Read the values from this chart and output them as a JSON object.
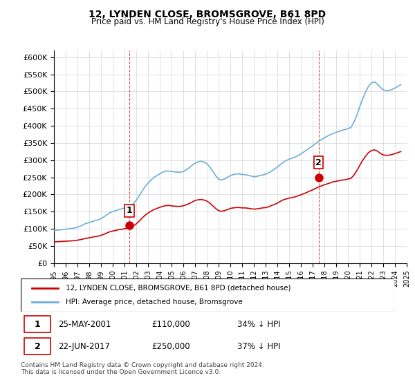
{
  "title": "12, LYNDEN CLOSE, BROMSGROVE, B61 8PD",
  "subtitle": "Price paid vs. HM Land Registry's House Price Index (HPI)",
  "xlabel": "",
  "ylabel": "",
  "ylim": [
    0,
    620000
  ],
  "yticks": [
    0,
    50000,
    100000,
    150000,
    200000,
    250000,
    300000,
    350000,
    400000,
    450000,
    500000,
    550000,
    600000
  ],
  "ytick_labels": [
    "£0",
    "£50K",
    "£100K",
    "£150K",
    "£200K",
    "£250K",
    "£300K",
    "£350K",
    "£400K",
    "£450K",
    "£500K",
    "£550K",
    "£600K"
  ],
  "hpi_color": "#6baed6",
  "price_color": "#cc0000",
  "marker_color": "#cc0000",
  "sale1_year": 2001.4,
  "sale1_price": 110000,
  "sale1_label": "1",
  "sale2_year": 2017.5,
  "sale2_price": 250000,
  "sale2_label": "2",
  "legend_line1": "12, LYNDEN CLOSE, BROMSGROVE, B61 8PD (detached house)",
  "legend_line2": "HPI: Average price, detached house, Bromsgrove",
  "table_row1": [
    "1",
    "25-MAY-2001",
    "£110,000",
    "34% ↓ HPI"
  ],
  "table_row2": [
    "2",
    "22-JUN-2017",
    "£250,000",
    "37% ↓ HPI"
  ],
  "footnote": "Contains HM Land Registry data © Crown copyright and database right 2024.\nThis data is licensed under the Open Government Licence v3.0.",
  "hpi_data": {
    "years": [
      1995.0,
      1995.25,
      1995.5,
      1995.75,
      1996.0,
      1996.25,
      1996.5,
      1996.75,
      1997.0,
      1997.25,
      1997.5,
      1997.75,
      1998.0,
      1998.25,
      1998.5,
      1998.75,
      1999.0,
      1999.25,
      1999.5,
      1999.75,
      2000.0,
      2000.25,
      2000.5,
      2000.75,
      2001.0,
      2001.25,
      2001.5,
      2001.75,
      2002.0,
      2002.25,
      2002.5,
      2002.75,
      2003.0,
      2003.25,
      2003.5,
      2003.75,
      2004.0,
      2004.25,
      2004.5,
      2004.75,
      2005.0,
      2005.25,
      2005.5,
      2005.75,
      2006.0,
      2006.25,
      2006.5,
      2006.75,
      2007.0,
      2007.25,
      2007.5,
      2007.75,
      2008.0,
      2008.25,
      2008.5,
      2008.75,
      2009.0,
      2009.25,
      2009.5,
      2009.75,
      2010.0,
      2010.25,
      2010.5,
      2010.75,
      2011.0,
      2011.25,
      2011.5,
      2011.75,
      2012.0,
      2012.25,
      2012.5,
      2012.75,
      2013.0,
      2013.25,
      2013.5,
      2013.75,
      2014.0,
      2014.25,
      2014.5,
      2014.75,
      2015.0,
      2015.25,
      2015.5,
      2015.75,
      2016.0,
      2016.25,
      2016.5,
      2016.75,
      2017.0,
      2017.25,
      2017.5,
      2017.75,
      2018.0,
      2018.25,
      2018.5,
      2018.75,
      2019.0,
      2019.25,
      2019.5,
      2019.75,
      2020.0,
      2020.25,
      2020.5,
      2020.75,
      2021.0,
      2021.25,
      2021.5,
      2021.75,
      2022.0,
      2022.25,
      2022.5,
      2022.75,
      2023.0,
      2023.25,
      2023.5,
      2023.75,
      2024.0,
      2024.25,
      2024.5
    ],
    "values": [
      95000,
      96000,
      97000,
      98000,
      99000,
      100000,
      101000,
      102000,
      105000,
      108000,
      112000,
      116000,
      118000,
      121000,
      124000,
      126000,
      130000,
      135000,
      141000,
      147000,
      150000,
      153000,
      156000,
      158000,
      161000,
      163000,
      167000,
      173000,
      183000,
      196000,
      210000,
      223000,
      233000,
      242000,
      250000,
      255000,
      260000,
      265000,
      268000,
      268000,
      267000,
      266000,
      265000,
      265000,
      267000,
      272000,
      278000,
      285000,
      291000,
      295000,
      297000,
      295000,
      290000,
      280000,
      268000,
      255000,
      245000,
      242000,
      245000,
      250000,
      255000,
      258000,
      260000,
      260000,
      258000,
      258000,
      256000,
      254000,
      252000,
      253000,
      255000,
      257000,
      259000,
      263000,
      268000,
      274000,
      280000,
      287000,
      294000,
      299000,
      303000,
      306000,
      309000,
      313000,
      318000,
      324000,
      330000,
      336000,
      342000,
      348000,
      355000,
      360000,
      365000,
      370000,
      374000,
      378000,
      381000,
      384000,
      387000,
      389000,
      392000,
      395000,
      410000,
      430000,
      455000,
      478000,
      498000,
      515000,
      525000,
      528000,
      522000,
      512000,
      505000,
      502000,
      503000,
      506000,
      510000,
      515000,
      520000
    ]
  },
  "price_data": {
    "years": [
      1995.0,
      1995.25,
      1995.5,
      1995.75,
      1996.0,
      1996.25,
      1996.5,
      1996.75,
      1997.0,
      1997.25,
      1997.5,
      1997.75,
      1998.0,
      1998.25,
      1998.5,
      1998.75,
      1999.0,
      1999.25,
      1999.5,
      1999.75,
      2000.0,
      2000.25,
      2000.5,
      2000.75,
      2001.0,
      2001.25,
      2001.5,
      2001.75,
      2002.0,
      2002.25,
      2002.5,
      2002.75,
      2003.0,
      2003.25,
      2003.5,
      2003.75,
      2004.0,
      2004.25,
      2004.5,
      2004.75,
      2005.0,
      2005.25,
      2005.5,
      2005.75,
      2006.0,
      2006.25,
      2006.5,
      2006.75,
      2007.0,
      2007.25,
      2007.5,
      2007.75,
      2008.0,
      2008.25,
      2008.5,
      2008.75,
      2009.0,
      2009.25,
      2009.5,
      2009.75,
      2010.0,
      2010.25,
      2010.5,
      2010.75,
      2011.0,
      2011.25,
      2011.5,
      2011.75,
      2012.0,
      2012.25,
      2012.5,
      2012.75,
      2013.0,
      2013.25,
      2013.5,
      2013.75,
      2014.0,
      2014.25,
      2014.5,
      2014.75,
      2015.0,
      2015.25,
      2015.5,
      2015.75,
      2016.0,
      2016.25,
      2016.5,
      2016.75,
      2017.0,
      2017.25,
      2017.5,
      2017.75,
      2018.0,
      2018.25,
      2018.5,
      2018.75,
      2019.0,
      2019.25,
      2019.5,
      2019.75,
      2020.0,
      2020.25,
      2020.5,
      2020.75,
      2021.0,
      2021.25,
      2021.5,
      2021.75,
      2022.0,
      2022.25,
      2022.5,
      2022.75,
      2023.0,
      2023.25,
      2023.5,
      2023.75,
      2024.0,
      2024.25,
      2024.5
    ],
    "values": [
      62000,
      62500,
      63000,
      63500,
      64000,
      64500,
      65000,
      65500,
      67000,
      68500,
      70500,
      72500,
      74000,
      75500,
      77500,
      78500,
      81000,
      84000,
      88000,
      91500,
      93500,
      95500,
      97500,
      98500,
      100500,
      102000,
      104500,
      108000,
      114500,
      122500,
      131500,
      139500,
      146000,
      151500,
      156000,
      159500,
      162500,
      165500,
      167500,
      168000,
      167000,
      166000,
      165500,
      165500,
      167000,
      170000,
      173500,
      178000,
      182500,
      184500,
      185500,
      184000,
      181000,
      175000,
      167500,
      159500,
      153000,
      151000,
      153000,
      156000,
      159500,
      161000,
      162000,
      162000,
      161000,
      161000,
      160000,
      158500,
      157500,
      158000,
      159500,
      161000,
      162000,
      164000,
      168000,
      171000,
      175000,
      180000,
      184500,
      187000,
      189500,
      191000,
      193000,
      196000,
      199000,
      202500,
      206000,
      210000,
      213500,
      217500,
      222000,
      225000,
      228500,
      231000,
      234000,
      237000,
      238500,
      240500,
      242000,
      243000,
      245000,
      247000,
      256000,
      269000,
      284500,
      299000,
      311500,
      322000,
      328000,
      330000,
      326500,
      320000,
      315500,
      314000,
      314500,
      316500,
      319000,
      322000,
      325000
    ]
  }
}
